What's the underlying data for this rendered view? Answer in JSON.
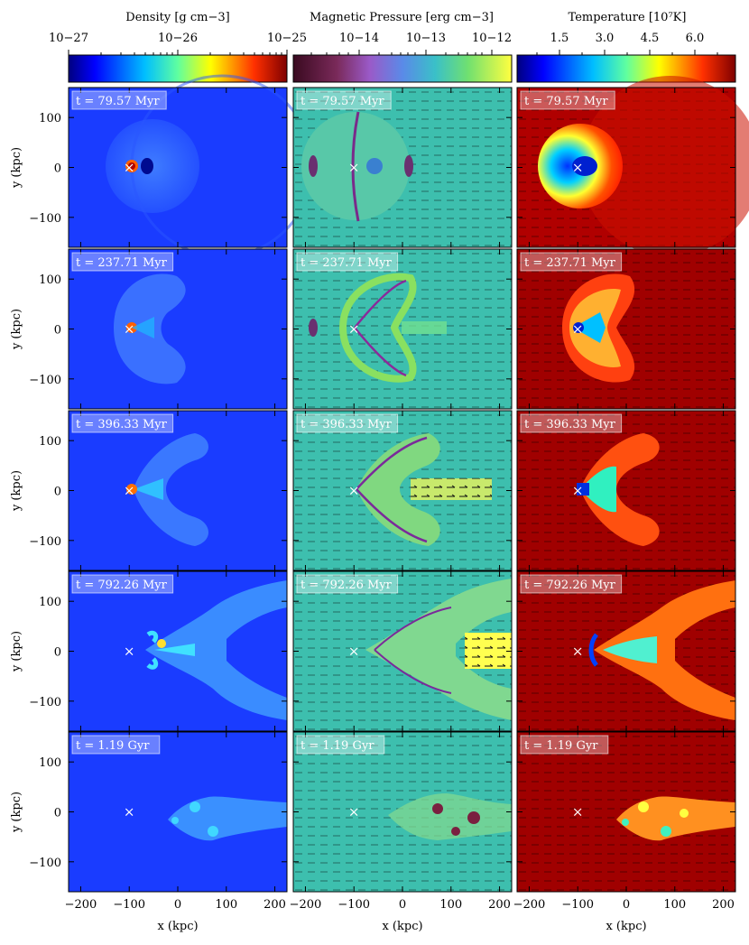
{
  "colorbars": [
    {
      "title": "Density [g cm−3]",
      "ticks": [
        "10−27",
        "10−26",
        "10−25"
      ],
      "scale": "log",
      "range": [
        "1e-27",
        "1e-25"
      ],
      "colormap": "jet"
    },
    {
      "title": "Magnetic Pressure [erg cm−3]",
      "ticks": [
        "10−14",
        "10−13",
        "10−12"
      ],
      "scale": "log",
      "colormap": "plasma-viridis"
    },
    {
      "title": "Temperature [10⁷K]",
      "ticks": [
        "1.5",
        "3.0",
        "4.5",
        "6.0"
      ],
      "scale": "linear",
      "colormap": "jet"
    }
  ],
  "time_labels": [
    "t = 79.57 Myr",
    "t = 237.71 Myr",
    "t = 396.33 Myr",
    "t = 792.26 Myr",
    "t = 1.19 Gyr"
  ],
  "axes": {
    "xlabel": "x  (kpc)",
    "ylabel": "y  (kpc)",
    "xticks": [
      "−200",
      "−100",
      "0",
      "100",
      "200"
    ],
    "yticks": [
      "100",
      "0",
      "−100"
    ],
    "xlim": [
      -225,
      225
    ],
    "ylim": [
      -160,
      160
    ]
  },
  "marker": {
    "symbol": "×",
    "x_kpc": -100,
    "y_kpc": 0
  },
  "panel_colors": {
    "density_background": "#1a3cff",
    "magnetic_background": "#3dbfae",
    "temperature_background": "#7a0000"
  }
}
